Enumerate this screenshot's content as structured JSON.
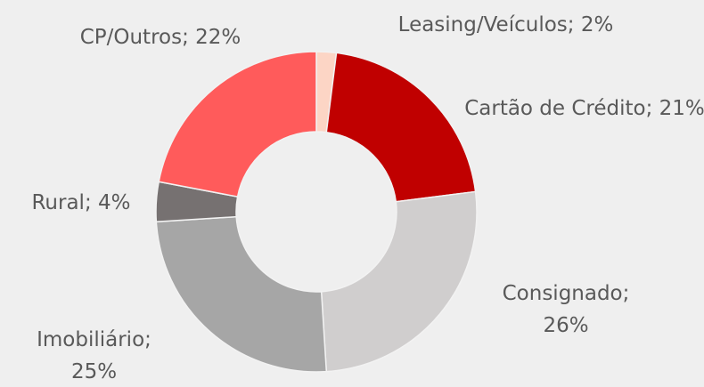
{
  "chart_data": {
    "type": "donut",
    "values": [
      2,
      21,
      26,
      25,
      4,
      22
    ],
    "value_labels": [
      "Leasing/Veículos; 2%",
      "Cartão de Crédito; 21%",
      "Consignado; 26%",
      "Imobiliário; 25%",
      "Rural; 4%",
      "CP/Outros; 22%"
    ],
    "colors": [
      "#fcd5c5",
      "#c00000",
      "#d0cece",
      "#a6a6a6",
      "#767171",
      "#ff5b5b"
    ]
  }
}
